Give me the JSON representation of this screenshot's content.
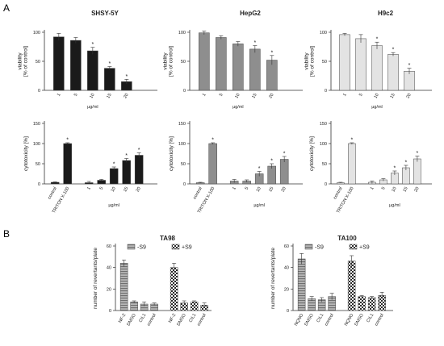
{
  "panel_labels": [
    "A",
    "B"
  ],
  "star": "*",
  "chart_data": [
    {
      "id": "shsy_viability",
      "type": "bar",
      "panel": "A",
      "title": "SHSY-5Y",
      "ylabel": "viability\n[% of control]",
      "xlabel": "µg/ml",
      "categories": [
        "1",
        "5",
        "10",
        "15",
        "20"
      ],
      "values": [
        92,
        86,
        68,
        38,
        15
      ],
      "errors": [
        6,
        5,
        6,
        3,
        4
      ],
      "significant": [
        false,
        false,
        true,
        true,
        true
      ],
      "ylim": [
        0,
        100
      ],
      "yticks": [
        0,
        50,
        100
      ],
      "color": "#1a1a1a",
      "pattern": "solid"
    },
    {
      "id": "hepg2_viability",
      "type": "bar",
      "panel": "A",
      "title": "HepG2",
      "ylabel": "viability\n[% of control]",
      "xlabel": "µg/ml",
      "categories": [
        "1",
        "5",
        "10",
        "15",
        "20"
      ],
      "values": [
        99,
        91,
        80,
        71,
        52
      ],
      "errors": [
        3,
        3,
        4,
        6,
        8
      ],
      "significant": [
        false,
        false,
        false,
        true,
        true
      ],
      "ylim": [
        0,
        100
      ],
      "yticks": [
        0,
        50,
        100
      ],
      "color": "#8e8e8e",
      "pattern": "solid"
    },
    {
      "id": "h9c2_viability",
      "type": "bar",
      "panel": "A",
      "title": "H9c2",
      "ylabel": "viability\n[% of control]",
      "xlabel": "µg/ml",
      "categories": [
        "1",
        "5",
        "10",
        "15",
        "20"
      ],
      "values": [
        96,
        89,
        77,
        62,
        33
      ],
      "errors": [
        2,
        7,
        6,
        3,
        5
      ],
      "significant": [
        false,
        false,
        true,
        true,
        true
      ],
      "ylim": [
        0,
        100
      ],
      "yticks": [
        0,
        50,
        100
      ],
      "color": "#e3e3e3",
      "pattern": "solid"
    },
    {
      "id": "shsy_cytotoxicity",
      "type": "bar",
      "panel": "A",
      "ylabel": "cytotoxicity [%]",
      "xlabel": "µg/ml",
      "categories": [
        "control",
        "TRITON X-100",
        "1",
        "5",
        "10",
        "15",
        "20"
      ],
      "values": [
        4,
        100,
        3,
        9,
        38,
        58,
        71
      ],
      "errors": [
        1,
        2,
        3,
        2,
        4,
        5,
        6
      ],
      "significant": [
        false,
        true,
        false,
        false,
        true,
        true,
        true
      ],
      "ylim": [
        0,
        150
      ],
      "yticks": [
        0,
        50,
        100,
        150
      ],
      "color": "#1a1a1a",
      "pattern": "solid"
    },
    {
      "id": "hepg2_cytotoxicity",
      "type": "bar",
      "panel": "A",
      "ylabel": "cytotoxicity [%]",
      "xlabel": "µg/ml",
      "categories": [
        "control",
        "TRITON X-100",
        "1",
        "5",
        "10",
        "15",
        "20"
      ],
      "values": [
        3,
        100,
        7,
        7,
        25,
        44,
        61
      ],
      "errors": [
        1,
        2,
        4,
        3,
        6,
        6,
        7
      ],
      "significant": [
        false,
        true,
        false,
        false,
        true,
        true,
        true
      ],
      "ylim": [
        0,
        150
      ],
      "yticks": [
        0,
        50,
        100,
        150
      ],
      "color": "#8e8e8e",
      "pattern": "solid"
    },
    {
      "id": "h9c2_cytotoxicity",
      "type": "bar",
      "panel": "A",
      "ylabel": "cytotoxicity [%]",
      "xlabel": "µg/ml",
      "categories": [
        "control",
        "TRITON X-100",
        "1",
        "5",
        "10",
        "15",
        "20"
      ],
      "values": [
        3,
        100,
        4,
        10,
        27,
        40,
        62
      ],
      "errors": [
        1,
        2,
        3,
        3,
        5,
        6,
        7
      ],
      "significant": [
        false,
        true,
        false,
        false,
        true,
        true,
        true
      ],
      "ylim": [
        0,
        150
      ],
      "yticks": [
        0,
        50,
        100,
        150
      ],
      "color": "#e3e3e3",
      "pattern": "solid"
    },
    {
      "id": "ta98",
      "type": "bar",
      "panel": "B",
      "title": "TA98",
      "ylabel": "number of revertants/plate",
      "categories": [
        "NF-2",
        "DMSO",
        "CIL1",
        "control",
        "NF-2",
        "DMSO",
        "CIL1",
        "control"
      ],
      "values": [
        44,
        8,
        6,
        6,
        40,
        7,
        8,
        5
      ],
      "errors": [
        3,
        1,
        2,
        1,
        4,
        2,
        1,
        2
      ],
      "series_of_bar": [
        0,
        0,
        0,
        0,
        1,
        1,
        1,
        1
      ],
      "legend": [
        "-S9",
        "+S9"
      ],
      "legend_position": "top",
      "ylim": [
        0,
        60
      ],
      "yticks": [
        0,
        20,
        40,
        60
      ]
    },
    {
      "id": "ta100",
      "type": "bar",
      "panel": "B",
      "title": "TA100",
      "ylabel": "number of revertants/plate",
      "categories": [
        "NQNO",
        "DMSO",
        "CIL1",
        "control",
        "NQNO",
        "DMSO",
        "CIL1",
        "control"
      ],
      "values": [
        48,
        11,
        10,
        13,
        46,
        13,
        12,
        14
      ],
      "errors": [
        5,
        2,
        2,
        3,
        5,
        1,
        1,
        3
      ],
      "series_of_bar": [
        0,
        0,
        0,
        0,
        1,
        1,
        1,
        1
      ],
      "legend": [
        "-S9",
        "+S9"
      ],
      "legend_position": "top",
      "ylim": [
        0,
        60
      ],
      "yticks": [
        0,
        20,
        40,
        60
      ]
    }
  ]
}
